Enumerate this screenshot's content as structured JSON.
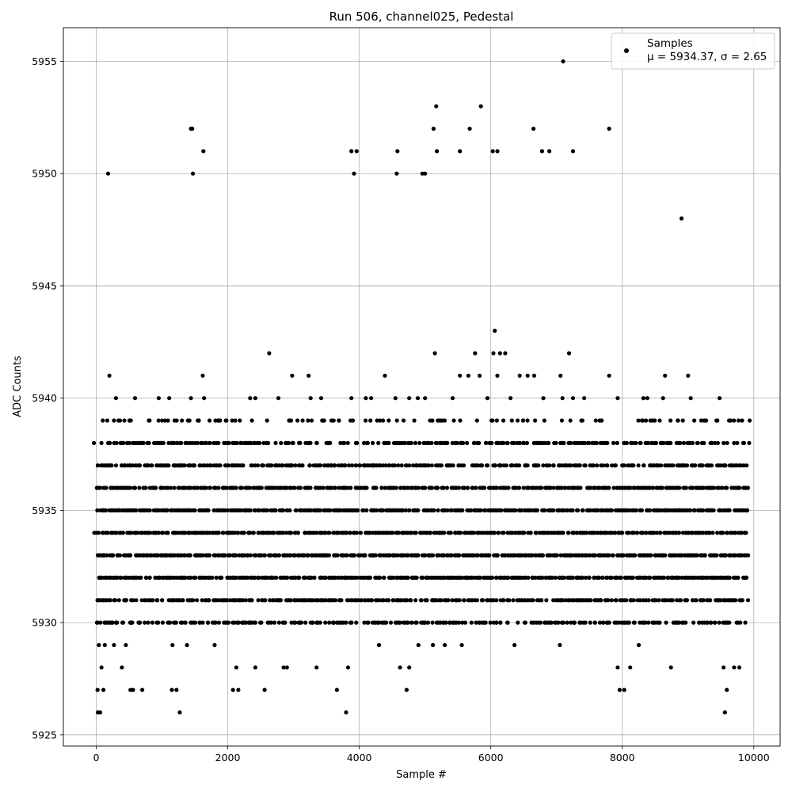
{
  "chart_data": {
    "type": "scatter",
    "title": "Run 506, channel025, Pedestal",
    "xlabel": "Sample #",
    "ylabel": "ADC Counts",
    "xlim": [
      -500,
      10400
    ],
    "ylim": [
      5924.5,
      5956.5
    ],
    "xticks": [
      0,
      2000,
      4000,
      6000,
      8000,
      10000
    ],
    "yticks": [
      5925,
      5930,
      5935,
      5940,
      5945,
      5950,
      5955
    ],
    "grid": true,
    "legend": {
      "placement": "top-right",
      "series_label": "Samples",
      "stats_label": "μ = 5934.37, σ = 2.65"
    },
    "marker_color": "#000000",
    "sample_count": 9900,
    "mean": 5934.37,
    "sigma": 2.65,
    "band_levels": [
      5930,
      5931,
      5932,
      5933,
      5934,
      5935,
      5936,
      5937,
      5938
    ],
    "band_x_range": [
      0,
      9900
    ],
    "outliers": [
      {
        "x": 25,
        "y": 5926
      },
      {
        "x": 60,
        "y": 5926
      },
      {
        "x": 110,
        "y": 5927
      },
      {
        "x": 20,
        "y": 5927
      },
      {
        "x": 80,
        "y": 5928
      },
      {
        "x": 40,
        "y": 5929
      },
      {
        "x": 130,
        "y": 5929
      },
      {
        "x": 270,
        "y": 5929
      },
      {
        "x": 390,
        "y": 5928
      },
      {
        "x": 450,
        "y": 5929
      },
      {
        "x": 520,
        "y": 5927
      },
      {
        "x": 560,
        "y": 5927
      },
      {
        "x": 700,
        "y": 5927
      },
      {
        "x": 1150,
        "y": 5927
      },
      {
        "x": 1220,
        "y": 5927
      },
      {
        "x": 1270,
        "y": 5926
      },
      {
        "x": 1160,
        "y": 5929
      },
      {
        "x": 1380,
        "y": 5929
      },
      {
        "x": 1800,
        "y": 5929
      },
      {
        "x": 2080,
        "y": 5927
      },
      {
        "x": 2130,
        "y": 5928
      },
      {
        "x": 2160,
        "y": 5927
      },
      {
        "x": 2420,
        "y": 5928
      },
      {
        "x": 2560,
        "y": 5927
      },
      {
        "x": 2850,
        "y": 5928
      },
      {
        "x": 2900,
        "y": 5928
      },
      {
        "x": 3350,
        "y": 5928
      },
      {
        "x": 3660,
        "y": 5927
      },
      {
        "x": 3800,
        "y": 5926
      },
      {
        "x": 3830,
        "y": 5928
      },
      {
        "x": 4300,
        "y": 5929
      },
      {
        "x": 4620,
        "y": 5928
      },
      {
        "x": 4720,
        "y": 5927
      },
      {
        "x": 4760,
        "y": 5928
      },
      {
        "x": 4900,
        "y": 5929
      },
      {
        "x": 5120,
        "y": 5929
      },
      {
        "x": 5300,
        "y": 5929
      },
      {
        "x": 5560,
        "y": 5929
      },
      {
        "x": 6360,
        "y": 5929
      },
      {
        "x": 7050,
        "y": 5929
      },
      {
        "x": 7930,
        "y": 5928
      },
      {
        "x": 7960,
        "y": 5927
      },
      {
        "x": 8030,
        "y": 5927
      },
      {
        "x": 8120,
        "y": 5928
      },
      {
        "x": 8250,
        "y": 5929
      },
      {
        "x": 8740,
        "y": 5928
      },
      {
        "x": 9540,
        "y": 5928
      },
      {
        "x": 9560,
        "y": 5926
      },
      {
        "x": 9590,
        "y": 5927
      },
      {
        "x": 9700,
        "y": 5928
      },
      {
        "x": 9780,
        "y": 5928
      },
      {
        "x": 200,
        "y": 5941
      },
      {
        "x": 300,
        "y": 5940
      },
      {
        "x": 590,
        "y": 5940
      },
      {
        "x": 950,
        "y": 5940
      },
      {
        "x": 1110,
        "y": 5940
      },
      {
        "x": 1440,
        "y": 5940
      },
      {
        "x": 1620,
        "y": 5941
      },
      {
        "x": 1640,
        "y": 5940
      },
      {
        "x": 2340,
        "y": 5940
      },
      {
        "x": 2420,
        "y": 5940
      },
      {
        "x": 2630,
        "y": 5942
      },
      {
        "x": 2770,
        "y": 5940
      },
      {
        "x": 2980,
        "y": 5941
      },
      {
        "x": 3230,
        "y": 5941
      },
      {
        "x": 3260,
        "y": 5940
      },
      {
        "x": 3420,
        "y": 5940
      },
      {
        "x": 3880,
        "y": 5940
      },
      {
        "x": 4100,
        "y": 5940
      },
      {
        "x": 4180,
        "y": 5940
      },
      {
        "x": 4390,
        "y": 5941
      },
      {
        "x": 4550,
        "y": 5940
      },
      {
        "x": 4760,
        "y": 5940
      },
      {
        "x": 4890,
        "y": 5940
      },
      {
        "x": 5000,
        "y": 5940
      },
      {
        "x": 5150,
        "y": 5942
      },
      {
        "x": 5420,
        "y": 5940
      },
      {
        "x": 5530,
        "y": 5941
      },
      {
        "x": 5660,
        "y": 5941
      },
      {
        "x": 5760,
        "y": 5942
      },
      {
        "x": 5830,
        "y": 5941
      },
      {
        "x": 5950,
        "y": 5940
      },
      {
        "x": 6040,
        "y": 5942
      },
      {
        "x": 6060,
        "y": 5943
      },
      {
        "x": 6100,
        "y": 5941
      },
      {
        "x": 6140,
        "y": 5942
      },
      {
        "x": 6220,
        "y": 5942
      },
      {
        "x": 6300,
        "y": 5940
      },
      {
        "x": 6440,
        "y": 5941
      },
      {
        "x": 6560,
        "y": 5941
      },
      {
        "x": 6660,
        "y": 5941
      },
      {
        "x": 6800,
        "y": 5940
      },
      {
        "x": 7060,
        "y": 5941
      },
      {
        "x": 7090,
        "y": 5940
      },
      {
        "x": 7190,
        "y": 5942
      },
      {
        "x": 7250,
        "y": 5940
      },
      {
        "x": 7420,
        "y": 5940
      },
      {
        "x": 7800,
        "y": 5941
      },
      {
        "x": 7930,
        "y": 5940
      },
      {
        "x": 8320,
        "y": 5940
      },
      {
        "x": 8380,
        "y": 5940
      },
      {
        "x": 8620,
        "y": 5940
      },
      {
        "x": 8650,
        "y": 5941
      },
      {
        "x": 9000,
        "y": 5941
      },
      {
        "x": 9040,
        "y": 5940
      },
      {
        "x": 9480,
        "y": 5940
      },
      {
        "x": 180,
        "y": 5950
      },
      {
        "x": 1440,
        "y": 5952
      },
      {
        "x": 1460,
        "y": 5952
      },
      {
        "x": 1470,
        "y": 5950
      },
      {
        "x": 1630,
        "y": 5951
      },
      {
        "x": 3880,
        "y": 5951
      },
      {
        "x": 3920,
        "y": 5950
      },
      {
        "x": 3960,
        "y": 5951
      },
      {
        "x": 4570,
        "y": 5950
      },
      {
        "x": 4580,
        "y": 5951
      },
      {
        "x": 4960,
        "y": 5950
      },
      {
        "x": 5000,
        "y": 5950
      },
      {
        "x": 5130,
        "y": 5952
      },
      {
        "x": 5170,
        "y": 5953
      },
      {
        "x": 5180,
        "y": 5951
      },
      {
        "x": 5530,
        "y": 5951
      },
      {
        "x": 5680,
        "y": 5952
      },
      {
        "x": 5850,
        "y": 5953
      },
      {
        "x": 6030,
        "y": 5951
      },
      {
        "x": 6100,
        "y": 5951
      },
      {
        "x": 6650,
        "y": 5952
      },
      {
        "x": 6780,
        "y": 5951
      },
      {
        "x": 6890,
        "y": 5951
      },
      {
        "x": 7100,
        "y": 5955
      },
      {
        "x": 7250,
        "y": 5951
      },
      {
        "x": 7800,
        "y": 5952
      },
      {
        "x": 8900,
        "y": 5948
      }
    ]
  }
}
